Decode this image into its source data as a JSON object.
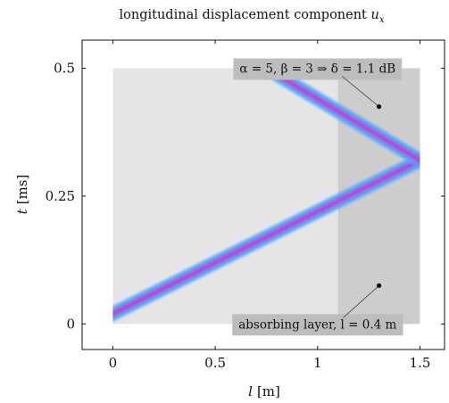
{
  "chart_data": {
    "type": "line",
    "title": "longitudinal displacement component u_x",
    "title_parts": {
      "prefix": "longitudinal displacement component ",
      "symbol": "u",
      "subscript": "x"
    },
    "xlabel": {
      "symbol": "l",
      "unit": "[m]"
    },
    "ylabel": {
      "symbol": "t",
      "unit": "[ms]"
    },
    "xlim": [
      -0.15,
      1.62
    ],
    "ylim": [
      -0.05,
      0.555
    ],
    "x_ticks": [
      {
        "value": 0,
        "label": "0"
      },
      {
        "value": 0.5,
        "label": "0.5"
      },
      {
        "value": 1,
        "label": "1"
      },
      {
        "value": 1.5,
        "label": "1.5"
      }
    ],
    "y_ticks": [
      {
        "value": 0,
        "label": "0"
      },
      {
        "value": 0.25,
        "label": "0.25"
      },
      {
        "value": 0.5,
        "label": "0.5"
      }
    ],
    "domain": {
      "x": [
        0,
        1.5
      ],
      "y": [
        0,
        0.5
      ],
      "color": "#e5e5e5"
    },
    "absorbing_layer": {
      "x": [
        1.1,
        1.5
      ],
      "y": [
        0,
        0.5
      ],
      "color": "#cdcdcd"
    },
    "series": [
      {
        "x": [
          0,
          1.5
        ],
        "y": [
          0.02,
          0.32
        ]
      },
      {
        "x": [
          1.5,
          0.75
        ],
        "y": [
          0.32,
          0.5
        ]
      }
    ],
    "wave_colors": {
      "core": "#c23fd0",
      "edge": "#4aa7ff"
    },
    "annotations": [
      {
        "text": "α = 5, β = 3 ⇒ δ = 1.1 dB",
        "point": {
          "x": 1.3,
          "y": 0.425
        },
        "box_anchor": {
          "x": 1.0,
          "y": 0.5
        }
      },
      {
        "text": "absorbing layer, l = 0.4 m",
        "point": {
          "x": 1.3,
          "y": 0.075
        },
        "box_anchor": {
          "x": 1.0,
          "y": 0.0
        }
      }
    ],
    "grid": false,
    "legend": "none"
  }
}
